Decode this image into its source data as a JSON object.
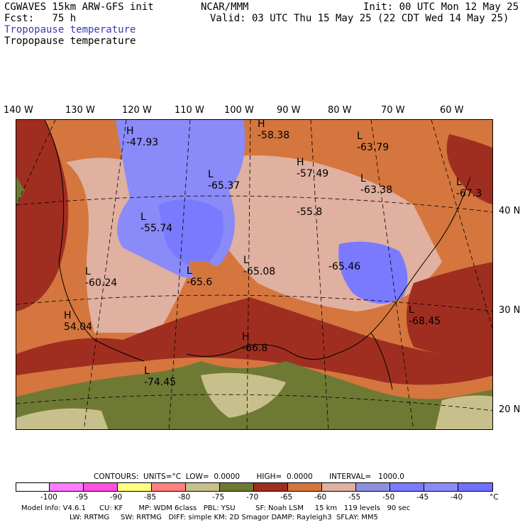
{
  "header": {
    "model": "CGWAVES 15km ARW-GFS init",
    "org": "NCAR/MMM",
    "init": "Init: 00 UTC Mon 12 May 25",
    "fcst": "Fcst:   75 h",
    "valid": "Valid: 03 UTC Thu 15 May 25 (22 CDT Wed 14 May 25)",
    "field1": "Tropopause temperature",
    "field2": "Tropopause temperature"
  },
  "longitudes": [
    "140 W",
    "130 W",
    "120 W",
    "110 W",
    "100 W",
    "90 W",
    "80 W",
    "70 W",
    "60 W"
  ],
  "latitudes": [
    "40 N",
    "30 N",
    "20 N"
  ],
  "labels": [
    {
      "kind": "H",
      "value": "-47.93"
    },
    {
      "kind": "H",
      "value": "-58.38"
    },
    {
      "kind": "L",
      "value": "-63.79"
    },
    {
      "kind": "H",
      "value": "-57.49"
    },
    {
      "kind": "L",
      "value": "-65.37"
    },
    {
      "kind": "L",
      "value": "-63.38"
    },
    {
      "kind": "L",
      "value": "-67.3"
    },
    {
      "kind": "",
      "value": "-55.8"
    },
    {
      "kind": "L",
      "value": "-55.74"
    },
    {
      "kind": "L",
      "value": "-65.08"
    },
    {
      "kind": "",
      "value": "-65.46"
    },
    {
      "kind": "L",
      "value": "-65.6"
    },
    {
      "kind": "L",
      "value": "-60.24"
    },
    {
      "kind": "H",
      "value": "54.04"
    },
    {
      "kind": "L",
      "value": "-68.45"
    },
    {
      "kind": "H",
      "value": "-66.8"
    },
    {
      "kind": "L",
      "value": "-74.45"
    }
  ],
  "contours": {
    "line": "CONTOURS:  UNITS=°C  LOW=  0.0000       HIGH=  0.0000       INTERVAL=   1000.0"
  },
  "colorbar": {
    "colors": [
      "#ffffff",
      "#ff7aff",
      "#ff4fe0",
      "#ffff80",
      "#ff8080",
      "#c8c08c",
      "#6e7a34",
      "#a02e20",
      "#d4763e",
      "#e08a5a",
      "#e0b0a0",
      "#9090e0",
      "#7a7aff",
      "#8a8af8",
      "#7070ff"
    ],
    "ticks": [
      "-100",
      "-95",
      "-90",
      "-85",
      "-80",
      "-75",
      "-70",
      "-65",
      "-60",
      "-55",
      "-50",
      "-45",
      "-40",
      "°C"
    ]
  },
  "footer": {
    "line1": "Model Info: V4.6.1      CU: KF       MP: WDM 6class   PBL: YSU         SF: Noah LSM     15 km   119 levels   90 sec",
    "line2": "LW: RRTMG     SW: RRTMG   DIFF: simple KM: 2D Smagor DAMP: Rayleigh3  SFLAY: MM5"
  }
}
